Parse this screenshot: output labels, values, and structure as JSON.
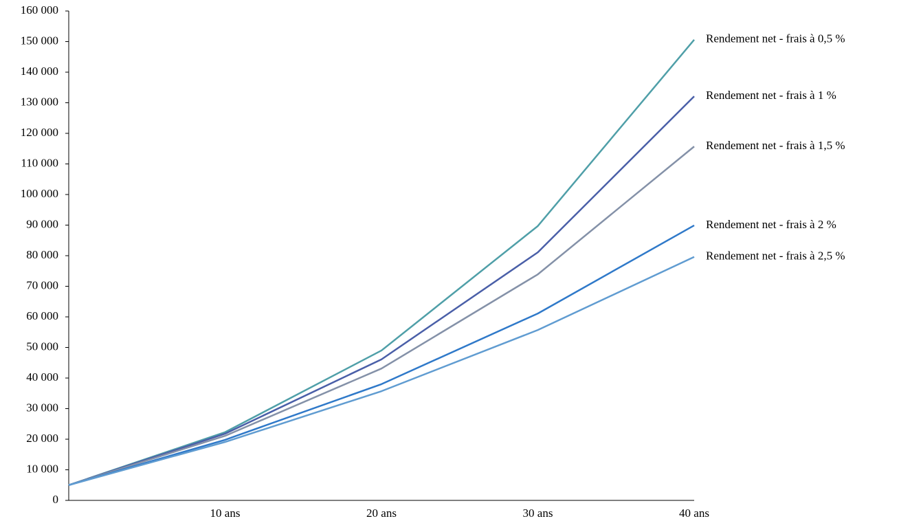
{
  "chart_data": {
    "type": "line",
    "categories": [
      null,
      "10 ans",
      "20 ans",
      "30 ans",
      "40 ans"
    ],
    "series": [
      {
        "name": "Rendement net - frais à 0,5 %",
        "color": "#4f9fa8",
        "values": [
          5000,
          22300,
          49000,
          89700,
          150600
        ]
      },
      {
        "name": "Rendement net - frais à 1 %",
        "color": "#4a5fa8",
        "values": [
          5000,
          21800,
          46100,
          81100,
          132100
        ]
      },
      {
        "name": "Rendement net - frais à 1,5 %",
        "color": "#8491a8",
        "values": [
          5000,
          21100,
          43100,
          73900,
          115700
        ]
      },
      {
        "name": "Rendement net - frais à 2 %",
        "color": "#2f79c9",
        "values": [
          5000,
          19800,
          38000,
          61100,
          89900
        ]
      },
      {
        "name": "Rendement net - frais à 2,5 %",
        "color": "#609cd1",
        "values": [
          5000,
          19100,
          35700,
          55700,
          79600
        ]
      }
    ],
    "ylim": [
      0,
      160000
    ],
    "yticks": [
      0,
      {
        "value": 10000,
        "label": "10 000"
      },
      {
        "value": 20000,
        "label": "20 000"
      },
      {
        "value": 30000,
        "label": "30 000"
      },
      {
        "value": 40000,
        "label": "40 000"
      },
      {
        "value": 50000,
        "label": "50 000"
      },
      {
        "value": 60000,
        "label": "60 000"
      },
      {
        "value": 70000,
        "label": "70 000"
      },
      {
        "value": 80000,
        "label": "80 000"
      },
      {
        "value": 90000,
        "label": "90 000"
      },
      {
        "value": 100000,
        "label": "100 000"
      },
      {
        "value": 110000,
        "label": "110 000"
      },
      {
        "value": 120000,
        "label": "120 000"
      },
      {
        "value": 130000,
        "label": "130 000"
      },
      {
        "value": 140000,
        "label": "140 000"
      },
      {
        "value": 150000,
        "label": "150 000"
      },
      {
        "value": 160000,
        "label": "160 000"
      }
    ],
    "grid": false
  }
}
